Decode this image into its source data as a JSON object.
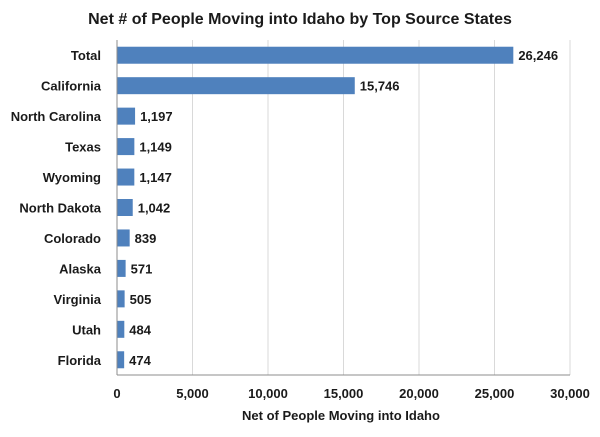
{
  "chart_data": {
    "type": "bar",
    "orientation": "horizontal",
    "title": "Net # of People Moving into Idaho by Top Source States",
    "xlabel": "Net of People Moving into Idaho",
    "ylabel": "",
    "categories": [
      "Total",
      "California",
      "North Carolina",
      "Texas",
      "Wyoming",
      "North Dakota",
      "Colorado",
      "Alaska",
      "Virginia",
      "Utah",
      "Florida"
    ],
    "values": [
      26246,
      15746,
      1197,
      1149,
      1147,
      1042,
      839,
      571,
      505,
      484,
      474
    ],
    "value_labels": [
      "26,246",
      "15,746",
      "1,197",
      "1,149",
      "1,147",
      "1,042",
      "839",
      "571",
      "505",
      "484",
      "474"
    ],
    "xlim": [
      0,
      30000
    ],
    "xticks": [
      0,
      5000,
      10000,
      15000,
      20000,
      25000,
      30000
    ],
    "xtick_labels": [
      "0",
      "5,000",
      "10,000",
      "15,000",
      "20,000",
      "25,000",
      "30,000"
    ],
    "grid": "vertical",
    "legend": "none",
    "bar_color": "#4f81bd"
  }
}
